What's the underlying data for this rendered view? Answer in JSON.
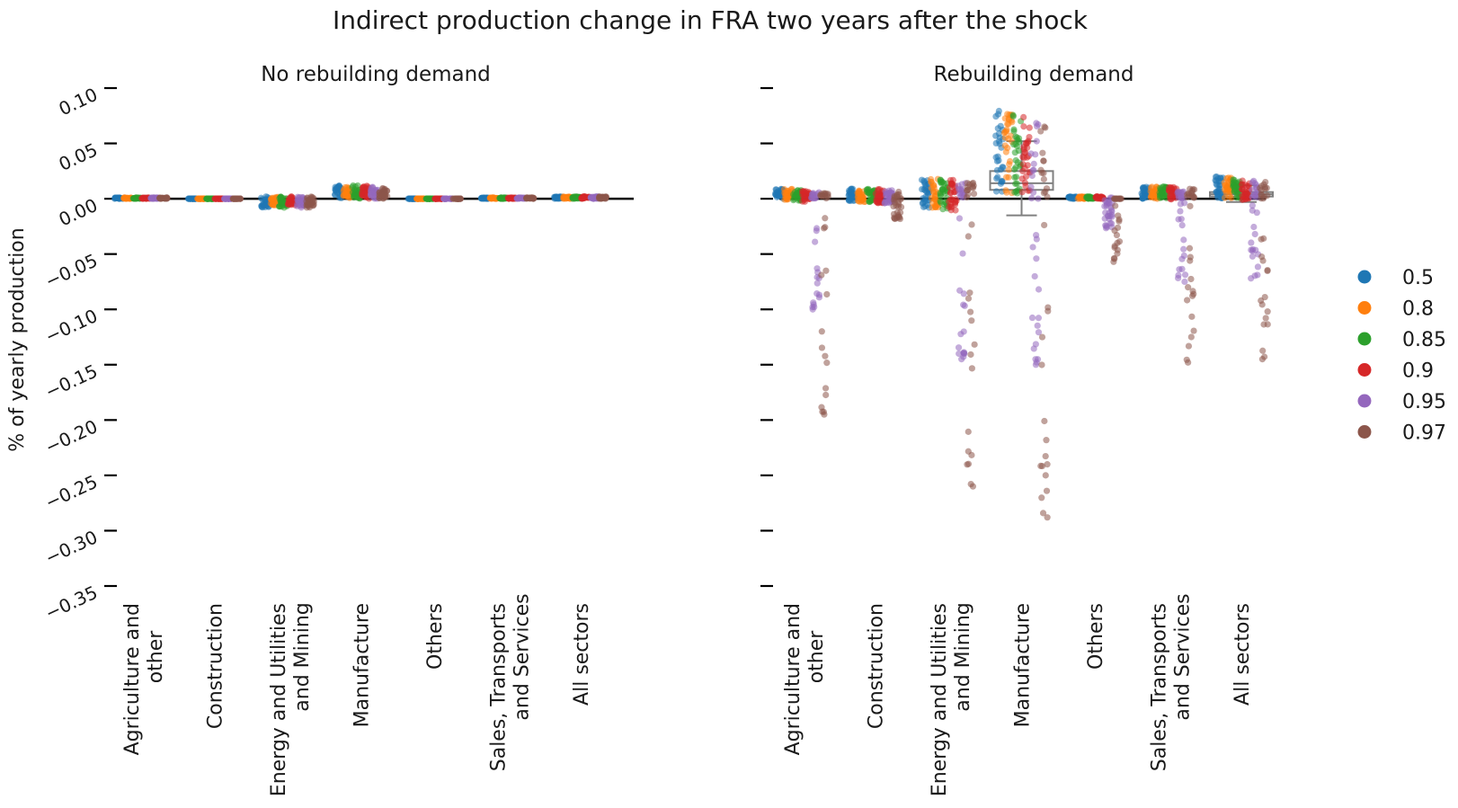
{
  "chart_data": {
    "type": "scatter",
    "title": "Indirect production change in FRA two years after the shock",
    "ylabel": "% of yearly production",
    "ylim": [
      -0.35,
      0.1
    ],
    "yticks": [
      0.1,
      0.05,
      0.0,
      -0.05,
      -0.1,
      -0.15,
      -0.2,
      -0.25,
      -0.3,
      -0.35
    ],
    "ytick_labels": [
      "0.10",
      "0.05",
      "0.00",
      "−0.05",
      "−0.10",
      "−0.15",
      "−0.20",
      "−0.25",
      "−0.30",
      "−0.35"
    ],
    "categories": [
      "Agriculture and\nother",
      "Construction",
      "Energy and Utilities\nand Mining",
      "Manufacture",
      "Others",
      "Sales, Transports\nand Services",
      "All sectors"
    ],
    "legend": {
      "placement": "right",
      "entries": [
        {
          "label": "0.5",
          "color": "#1f77b4"
        },
        {
          "label": "0.8",
          "color": "#ff7f0e"
        },
        {
          "label": "0.85",
          "color": "#2ca02c"
        },
        {
          "label": "0.9",
          "color": "#d62728"
        },
        {
          "label": "0.95",
          "color": "#9467bd"
        },
        {
          "label": "0.97",
          "color": "#8c564b"
        }
      ]
    },
    "panels": [
      {
        "title": "No rebuilding demand",
        "series": [
          {
            "name": "0.5",
            "lows": [
              0.0,
              0.0,
              -0.008,
              0.0,
              0.0,
              0.0,
              0.0
            ],
            "highs": [
              0.001,
              0.0,
              0.002,
              0.012,
              0.0,
              0.001,
              0.002
            ]
          },
          {
            "name": "0.8",
            "lows": [
              0.0,
              0.0,
              -0.006,
              0.0,
              0.0,
              0.0,
              0.0
            ],
            "highs": [
              0.001,
              0.0,
              0.002,
              0.012,
              0.0,
              0.001,
              0.002
            ]
          },
          {
            "name": "0.85",
            "lows": [
              0.0,
              0.0,
              -0.008,
              0.0,
              0.0,
              0.0,
              0.0
            ],
            "highs": [
              0.001,
              0.0,
              0.002,
              0.012,
              0.0,
              0.001,
              0.002
            ]
          },
          {
            "name": "0.9",
            "lows": [
              0.0,
              0.0,
              -0.006,
              0.0,
              0.0,
              0.0,
              0.0
            ],
            "highs": [
              0.001,
              0.0,
              0.002,
              0.012,
              0.0,
              0.001,
              0.002
            ]
          },
          {
            "name": "0.95",
            "lows": [
              0.0,
              0.0,
              -0.008,
              0.0,
              0.0,
              0.0,
              0.0
            ],
            "highs": [
              0.001,
              0.0,
              0.002,
              0.011,
              0.0,
              0.001,
              0.002
            ]
          },
          {
            "name": "0.97",
            "lows": [
              0.0,
              0.0,
              -0.008,
              0.0,
              0.0,
              0.0,
              0.0
            ],
            "highs": [
              0.001,
              0.0,
              0.002,
              0.01,
              0.0,
              0.001,
              0.002
            ]
          }
        ],
        "boxes": []
      },
      {
        "title": "Rebuilding demand",
        "series": [
          {
            "name": "0.5",
            "lows": [
              0.0,
              -0.002,
              -0.008,
              0.005,
              0.0,
              0.0,
              0.0
            ],
            "highs": [
              0.009,
              0.009,
              0.018,
              0.08,
              0.002,
              0.011,
              0.02
            ]
          },
          {
            "name": "0.8",
            "lows": [
              -0.001,
              -0.003,
              -0.008,
              0.005,
              0.0,
              0.0,
              0.0
            ],
            "highs": [
              0.009,
              0.009,
              0.018,
              0.078,
              0.002,
              0.011,
              0.019
            ]
          },
          {
            "name": "0.85",
            "lows": [
              -0.002,
              -0.003,
              -0.01,
              0.004,
              0.0,
              0.0,
              0.0
            ],
            "highs": [
              0.008,
              0.009,
              0.018,
              0.076,
              0.002,
              0.011,
              0.018
            ]
          },
          {
            "name": "0.9",
            "lows": [
              -0.003,
              -0.004,
              -0.012,
              0.003,
              0.0,
              -0.001,
              -0.001
            ],
            "highs": [
              0.007,
              0.009,
              0.017,
              0.074,
              0.002,
              0.011,
              0.018
            ]
          },
          {
            "name": "0.95",
            "lows": [
              -0.1,
              -0.005,
              -0.145,
              -0.15,
              -0.028,
              -0.075,
              -0.072
            ],
            "highs": [
              0.006,
              0.008,
              0.016,
              0.072,
              0.001,
              0.01,
              0.017
            ]
          },
          {
            "name": "0.97",
            "lows": [
              -0.195,
              -0.02,
              -0.26,
              -0.288,
              -0.057,
              -0.148,
              -0.145
            ],
            "highs": [
              0.005,
              0.007,
              0.015,
              0.068,
              0.0,
              0.009,
              0.016
            ]
          }
        ],
        "boxes": [
          {
            "category": "Manufacture",
            "q1": 0.008,
            "median": 0.014,
            "q3": 0.025,
            "whisker_low": -0.015,
            "whisker_high": 0.052
          },
          {
            "category": "All sectors",
            "q1": 0.002,
            "median": 0.004,
            "q3": 0.006,
            "whisker_low": -0.003,
            "whisker_high": 0.012
          }
        ]
      }
    ]
  }
}
